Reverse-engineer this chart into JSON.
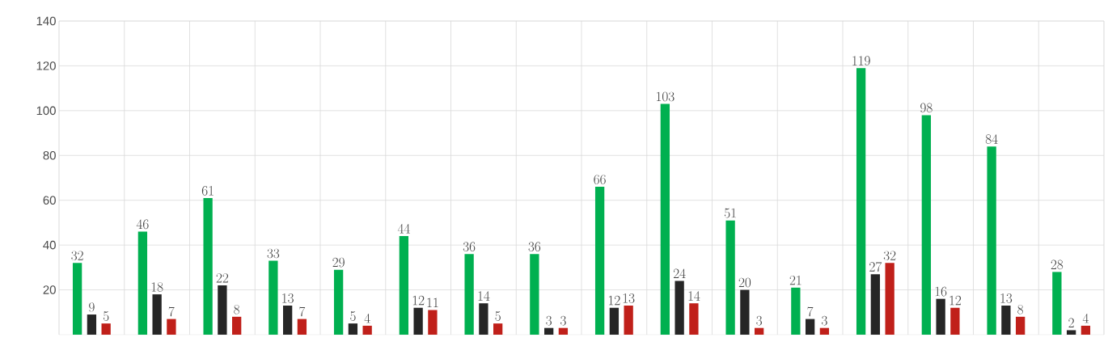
{
  "chart_data": {
    "type": "bar",
    "categories": [
      null,
      null,
      null,
      null,
      null,
      null,
      null,
      null,
      null,
      null,
      null,
      null,
      null,
      null,
      null,
      null
    ],
    "series": [
      {
        "color": "#00b050",
        "values": [
          32,
          46,
          61,
          33,
          29,
          44,
          36,
          36,
          66,
          103,
          51,
          21,
          119,
          98,
          84,
          28
        ]
      },
      {
        "color": "#262626",
        "values": [
          9,
          18,
          22,
          13,
          5,
          12,
          14,
          3,
          12,
          24,
          20,
          7,
          27,
          16,
          13,
          2
        ]
      },
      {
        "color": "#c0201a",
        "values": [
          5,
          7,
          8,
          7,
          4,
          11,
          5,
          3,
          13,
          14,
          3,
          3,
          32,
          12,
          8,
          4
        ]
      }
    ],
    "ylim": [
      0,
      140
    ],
    "yticks": [
      20,
      40,
      60,
      80,
      100,
      120,
      140
    ],
    "grid": true,
    "data_labels": true
  }
}
